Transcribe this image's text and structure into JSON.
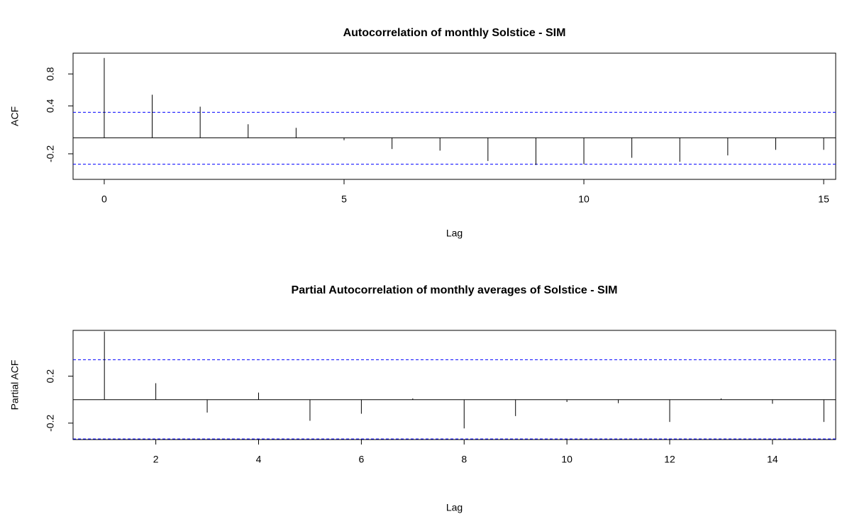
{
  "chart_data": [
    {
      "type": "acf",
      "title": "Autocorrelation of monthly Solstice - SIM",
      "x_label": "Lag",
      "y_label": "ACF",
      "x": [
        0,
        1,
        2,
        3,
        4,
        5,
        6,
        7,
        8,
        9,
        10,
        11,
        12,
        13,
        14,
        15
      ],
      "values": [
        1.0,
        0.54,
        0.39,
        0.17,
        0.125,
        -0.03,
        -0.14,
        -0.16,
        -0.29,
        -0.34,
        -0.33,
        -0.25,
        -0.3,
        -0.22,
        -0.15,
        -0.15
      ],
      "color": "#000000",
      "ci": [
        0.32,
        -0.33
      ],
      "ci_color": "#0000ff",
      "xlim": [
        -0.65,
        15.25
      ],
      "xticks": [
        0,
        5,
        10,
        15
      ],
      "ylim": [
        -0.52,
        1.06
      ],
      "yticks": [
        -0.2,
        0.4,
        0.8
      ]
    },
    {
      "type": "acf",
      "title": "Partial Autocorrelation of monthly averages of Solstice - SIM",
      "x_label": "Lag",
      "y_label": "Partial ACF",
      "x": [
        1,
        2,
        3,
        4,
        5,
        6,
        7,
        8,
        9,
        10,
        11,
        12,
        13,
        14,
        15
      ],
      "values": [
        0.58,
        0.14,
        -0.11,
        0.06,
        -0.18,
        -0.12,
        0.01,
        -0.245,
        -0.14,
        -0.02,
        -0.03,
        -0.19,
        0.01,
        -0.035,
        -0.19
      ],
      "color": "#000000",
      "ci": [
        0.34,
        -0.335
      ],
      "ci_color": "#0000ff",
      "xlim": [
        0.39,
        15.23
      ],
      "xticks": [
        2,
        4,
        6,
        8,
        10,
        12,
        14
      ],
      "ylim": [
        -0.34,
        0.59
      ],
      "yticks": [
        -0.2,
        0.2
      ]
    }
  ]
}
